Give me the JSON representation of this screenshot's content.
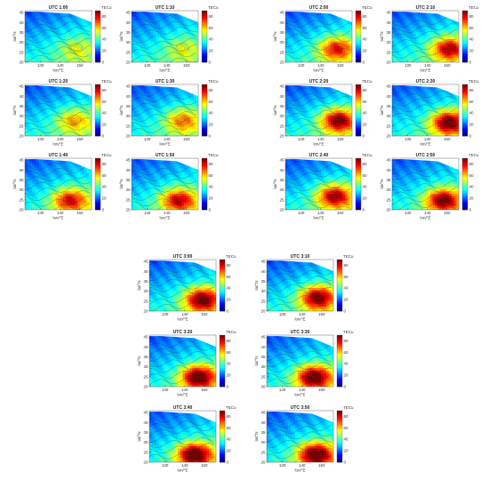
{
  "chart_data": {
    "type": "heatmap",
    "panels": [
      {
        "title": "UTC 1:00",
        "intensity": 0.22,
        "hotspot": [
          148,
          27
        ]
      },
      {
        "title": "UTC 1:10",
        "intensity": 0.22,
        "hotspot": [
          148,
          27
        ]
      },
      {
        "title": "UTC 1:20",
        "intensity": 0.38,
        "hotspot": [
          147,
          28
        ]
      },
      {
        "title": "UTC 1:30",
        "intensity": 0.45,
        "hotspot": [
          148,
          28
        ]
      },
      {
        "title": "UTC 1:40",
        "intensity": 0.62,
        "hotspot": [
          145,
          25
        ]
      },
      {
        "title": "UTC 1:50",
        "intensity": 0.66,
        "hotspot": [
          146,
          25
        ]
      },
      {
        "title": "UTC 2:00",
        "intensity": 0.6,
        "hotspot": [
          148,
          27
        ]
      },
      {
        "title": "UTC 2:10",
        "intensity": 0.68,
        "hotspot": [
          151,
          27
        ]
      },
      {
        "title": "UTC 2:20",
        "intensity": 0.78,
        "hotspot": [
          149,
          28
        ]
      },
      {
        "title": "UTC 2:30",
        "intensity": 0.82,
        "hotspot": [
          151,
          27
        ]
      },
      {
        "title": "UTC 2:40",
        "intensity": 0.72,
        "hotspot": [
          147,
          27
        ]
      },
      {
        "title": "UTC 2:50",
        "intensity": 0.76,
        "hotspot": [
          148,
          25
        ]
      },
      {
        "title": "UTC 3:00",
        "intensity": 0.82,
        "hotspot": [
          149,
          26
        ]
      },
      {
        "title": "UTC 3:10",
        "intensity": 0.8,
        "hotspot": [
          148,
          27
        ]
      },
      {
        "title": "UTC 3:20",
        "intensity": 0.86,
        "hotspot": [
          147,
          25
        ]
      },
      {
        "title": "UTC 3:30",
        "intensity": 0.86,
        "hotspot": [
          146,
          25
        ]
      },
      {
        "title": "UTC 3:40",
        "intensity": 0.9,
        "hotspot": [
          145,
          24
        ]
      },
      {
        "title": "UTC 3:50",
        "intensity": 0.88,
        "hotspot": [
          147,
          24
        ]
      }
    ],
    "xlabel": "lon/°E",
    "ylabel": "lat/°N",
    "xticks": [
      130,
      140,
      150
    ],
    "yticks": [
      20,
      25,
      30,
      35,
      40,
      45
    ],
    "xlim": [
      122,
      156
    ],
    "ylim": [
      20,
      46
    ],
    "colorbar": {
      "label": "TECu",
      "min": 0,
      "max": 90,
      "ticks": [
        0,
        20,
        40,
        60,
        80
      ]
    },
    "colorscale": "jet",
    "contour_lines": true
  }
}
